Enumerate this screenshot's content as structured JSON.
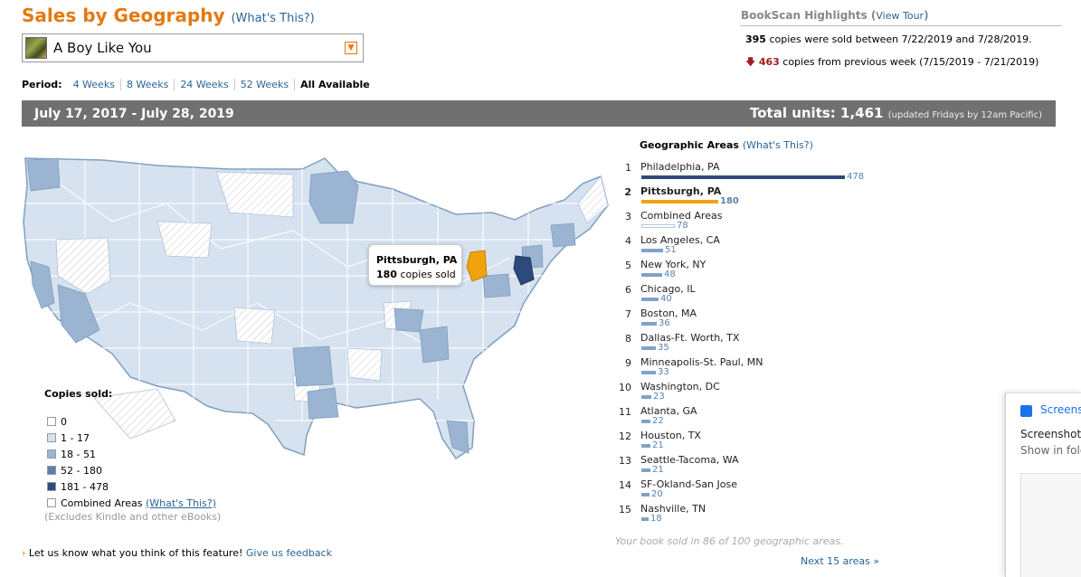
{
  "header": {
    "title": "Sales by Geography",
    "help_link": "(What's This?)"
  },
  "book_selector": {
    "value": "A Boy Like You"
  },
  "period": {
    "label": "Period:",
    "options": [
      "4 Weeks",
      "8 Weeks",
      "24 Weeks",
      "52 Weeks",
      "All Available"
    ],
    "selected": "All Available"
  },
  "highlights": {
    "title": "BookScan Highlights",
    "tour_link": "View Tour",
    "copies": "395",
    "copies_text": "copies were sold between 7/22/2019 and 7/28/2019.",
    "delta": "463",
    "delta_text": "copies from previous week (7/15/2019 - 7/21/2019)"
  },
  "summary": {
    "date_range": "July 17, 2017 - July 28, 2019",
    "total_label": "Total units:",
    "total_value": "1,461",
    "updated_note": "(updated Fridays by 12am Pacific)"
  },
  "tooltip": {
    "area": "Pittsburgh, PA",
    "copies": "180",
    "suffix": "copies sold"
  },
  "legend": {
    "title": "Copies sold:",
    "items": [
      {
        "label": "0",
        "color": "#ffffff"
      },
      {
        "label": "1 - 17",
        "color": "#d6e2ef"
      },
      {
        "label": "18 - 51",
        "color": "#9bb4d1"
      },
      {
        "label": "52 - 180",
        "color": "#5b80ac"
      },
      {
        "label": "181 - 478",
        "color": "#2c4b7c"
      }
    ],
    "combined_label": "Combined Areas",
    "combined_help": "(What's This?)",
    "excludes": "(Excludes Kindle and other eBooks)"
  },
  "geo": {
    "title": "Geographic Areas",
    "help_link": "(What's This?)",
    "areas": [
      {
        "rank": "1",
        "name": "Philadelphia, PA",
        "value": 478
      },
      {
        "rank": "2",
        "name": "Pittsburgh, PA",
        "value": 180
      },
      {
        "rank": "3",
        "name": "Combined Areas",
        "value": 78
      },
      {
        "rank": "4",
        "name": "Los Angeles, CA",
        "value": 51
      },
      {
        "rank": "5",
        "name": "New York, NY",
        "value": 48
      },
      {
        "rank": "6",
        "name": "Chicago, IL",
        "value": 40
      },
      {
        "rank": "7",
        "name": "Boston, MA",
        "value": 36
      },
      {
        "rank": "8",
        "name": "Dallas-Ft. Worth, TX",
        "value": 35
      },
      {
        "rank": "9",
        "name": "Minneapolis-St. Paul, MN",
        "value": 33
      },
      {
        "rank": "10",
        "name": "Washington, DC",
        "value": 23
      },
      {
        "rank": "11",
        "name": "Atlanta, GA",
        "value": 22
      },
      {
        "rank": "12",
        "name": "Houston, TX",
        "value": 21
      },
      {
        "rank": "13",
        "name": "Seattle-Tacoma, WA",
        "value": 21
      },
      {
        "rank": "14",
        "name": "SF-Okland-San Jose",
        "value": 20
      },
      {
        "rank": "15",
        "name": "Nashville, TN",
        "value": 18
      }
    ],
    "selected_rank": "2",
    "sold_note": "Your book sold in 86 of 100 geographic areas.",
    "next_link": "Next 15 areas »"
  },
  "feedback": {
    "chevron": "›",
    "text": "Let us know what you think of this feature!",
    "link": "Give us feedback"
  },
  "side_panel": {
    "title": "Screensh",
    "heading": "Screenshot",
    "sub": "Show in fold"
  }
}
